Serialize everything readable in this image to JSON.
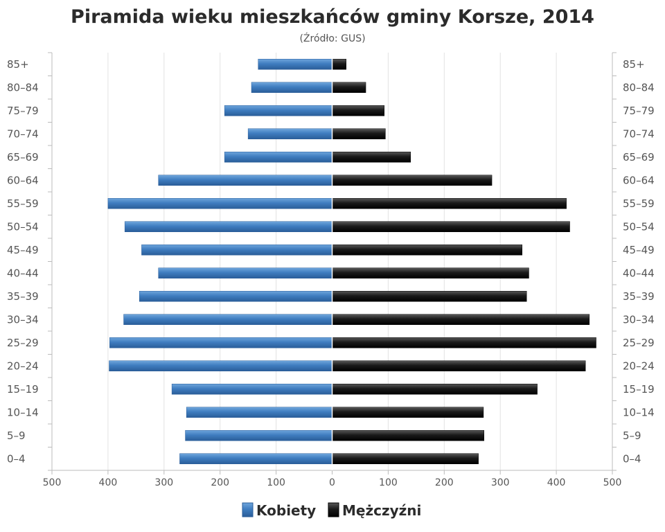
{
  "chart_data": {
    "type": "bar",
    "orientation": "horizontal",
    "layout": "population-pyramid",
    "title": "Piramida wieku mieszkańców gminy Korsze, 2014",
    "subtitle": "(Źródło: GUS)",
    "categories": [
      "0–4",
      "5–9",
      "10–14",
      "15–19",
      "20–24",
      "25–29",
      "30–34",
      "35–39",
      "40–44",
      "45–49",
      "50–54",
      "55–59",
      "60–64",
      "65–69",
      "70–74",
      "75–79",
      "80–84",
      "85+"
    ],
    "series": [
      {
        "name": "Kobiety",
        "side": "left",
        "color": "#3f7dc0",
        "values": [
          272,
          262,
          260,
          286,
          398,
          397,
          372,
          344,
          310,
          340,
          370,
          400,
          310,
          192,
          150,
          192,
          144,
          132
        ]
      },
      {
        "name": "Mężczyźni",
        "side": "right",
        "color": "#1a1a1a",
        "values": [
          261,
          271,
          270,
          366,
          452,
          471,
          459,
          347,
          351,
          339,
          424,
          418,
          285,
          140,
          95,
          93,
          60,
          25
        ]
      }
    ],
    "xlim": [
      -500,
      500
    ],
    "x_ticks": [
      "500",
      "400",
      "300",
      "200",
      "100",
      "0",
      "100",
      "200",
      "300",
      "400",
      "500"
    ],
    "grid": true,
    "legend_position": "bottom-center"
  }
}
